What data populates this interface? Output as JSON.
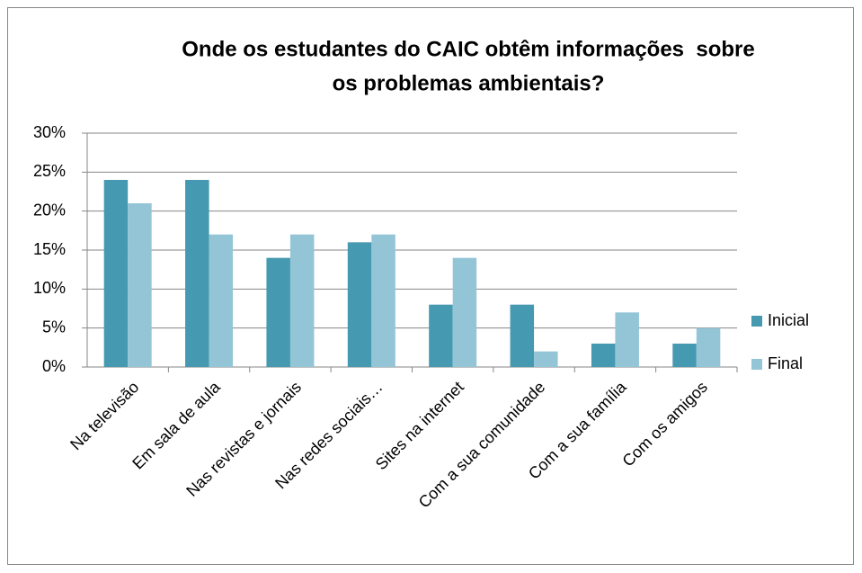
{
  "chart_data": {
    "type": "bar",
    "title": [
      "Onde os estudantes do CAIC obtêm informações  sobre",
      "os problemas ambientais?"
    ],
    "categories": [
      "Na televisão",
      "Em sala de aula",
      "Nas revistas e jornais",
      "Nas redes sociais…",
      "Sites na internet",
      "Com a sua comunidade",
      "Com a sua família",
      "Com os amigos"
    ],
    "series": [
      {
        "name": "Inicial",
        "color": "#4599b0",
        "values": [
          24,
          24,
          14,
          16,
          8,
          8,
          3,
          3
        ]
      },
      {
        "name": "Final",
        "color": "#93c5d7",
        "values": [
          21,
          17,
          17,
          17,
          14,
          2,
          7,
          5
        ]
      }
    ],
    "ylim": [
      0,
      30
    ],
    "yticks": [
      {
        "value": 0,
        "label": "0%"
      },
      {
        "value": 5,
        "label": "5%"
      },
      {
        "value": 10,
        "label": "10%"
      },
      {
        "value": 15,
        "label": "15%"
      },
      {
        "value": 20,
        "label": "20%"
      },
      {
        "value": 25,
        "label": "25%"
      },
      {
        "value": 30,
        "label": "30%"
      }
    ],
    "grid": true,
    "legend": "right"
  }
}
